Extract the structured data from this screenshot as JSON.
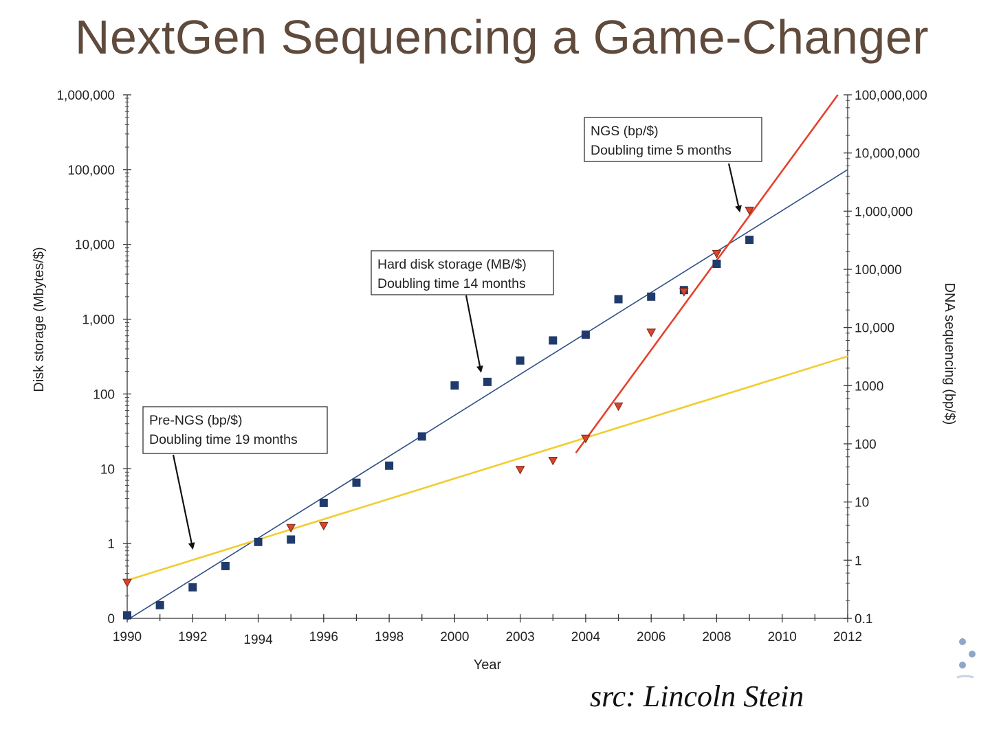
{
  "slide": {
    "title": "NextGen Sequencing a Game-Changer",
    "source": "src: Lincoln Stein"
  },
  "chart_data": {
    "type": "scatter",
    "title": "",
    "xlabel": "Year",
    "ylabel_left": "Disk storage (Mbytes/$)",
    "ylabel_right": "DNA sequencing (bp/$)",
    "x_tick_labels": [
      "1990",
      "1992",
      "1994",
      "1996",
      "1998",
      "2000",
      "2003",
      "2004",
      "2006",
      "2008",
      "2010",
      "2012"
    ],
    "x_tick_positions": [
      0,
      2,
      4,
      6,
      8,
      10,
      12,
      14,
      16,
      18,
      20,
      22
    ],
    "xlim": [
      0,
      22
    ],
    "y_left_ticks": [
      {
        "value": 0.1,
        "label": "0"
      },
      {
        "value": 1,
        "label": "1"
      },
      {
        "value": 10,
        "label": "10"
      },
      {
        "value": 100,
        "label": "100"
      },
      {
        "value": 1000,
        "label": "1,000"
      },
      {
        "value": 10000,
        "label": "10,000"
      },
      {
        "value": 100000,
        "label": "100,000"
      },
      {
        "value": 1000000,
        "label": "1,000,000"
      }
    ],
    "y_right_ticks": [
      {
        "value": 0.1,
        "label": "0.1"
      },
      {
        "value": 1,
        "label": "1"
      },
      {
        "value": 10,
        "label": "10"
      },
      {
        "value": 100,
        "label": "100"
      },
      {
        "value": 1000,
        "label": "1000"
      },
      {
        "value": 10000,
        "label": "10,000"
      },
      {
        "value": 100000,
        "label": "100,000"
      },
      {
        "value": 1000000,
        "label": "1,000,000"
      },
      {
        "value": 10000000,
        "label": "10,000,000"
      },
      {
        "value": 100000000,
        "label": "100,000,000"
      }
    ],
    "ylim_left": [
      0.1,
      1000000
    ],
    "ylim_right": [
      0.1,
      100000000
    ],
    "series": [
      {
        "name": "Hard disk storage (MB/$)",
        "axis": "left",
        "marker": "square",
        "color": "#1f3a6b",
        "points": [
          [
            0,
            0.11
          ],
          [
            1,
            0.15
          ],
          [
            2,
            0.26
          ],
          [
            3,
            0.5
          ],
          [
            4,
            1.05
          ],
          [
            5,
            1.13
          ],
          [
            6,
            3.5
          ],
          [
            7,
            6.5
          ],
          [
            8,
            11
          ],
          [
            9,
            27
          ],
          [
            10,
            130
          ],
          [
            11,
            145
          ],
          [
            12,
            280
          ],
          [
            13,
            520
          ],
          [
            14,
            620
          ],
          [
            15,
            1850
          ],
          [
            16,
            2000
          ],
          [
            17,
            2450
          ],
          [
            18,
            5500
          ],
          [
            19,
            11500
          ]
        ]
      },
      {
        "name": "DNA sequencing (bp/$)",
        "axis": "right",
        "marker": "triangle",
        "color": "#d9442b",
        "points": [
          [
            0,
            0.4
          ],
          [
            5,
            3.5
          ],
          [
            6,
            3.8
          ],
          [
            12,
            35
          ],
          [
            13,
            50
          ],
          [
            14,
            120
          ],
          [
            15,
            430
          ],
          [
            16,
            8000
          ],
          [
            17,
            40000
          ],
          [
            18,
            180000
          ],
          [
            19,
            1000000
          ]
        ]
      }
    ],
    "trend_lines": [
      {
        "name": "Hard disk storage trend",
        "axis": "left",
        "color": "#2e4f86",
        "from": [
          0,
          0.095
        ],
        "to": [
          22,
          100000
        ]
      },
      {
        "name": "Pre-NGS trend",
        "axis": "right",
        "color": "#f2cc2d",
        "from": [
          0,
          0.45
        ],
        "to": [
          22,
          3200
        ]
      },
      {
        "name": "NGS trend",
        "axis": "right",
        "color": "#e5412b",
        "from": [
          13.7,
          70
        ],
        "to": [
          21.7,
          100000000
        ]
      }
    ],
    "annotations": [
      {
        "id": "hdd",
        "lines": [
          "Hard disk storage (MB/$)",
          "Doubling time 14 months"
        ],
        "arrow_to": [
          10.8,
          200
        ],
        "arrow_axis": "left"
      },
      {
        "id": "ngs",
        "lines": [
          "NGS (bp/$)",
          "Doubling time 5 months"
        ],
        "arrow_to": [
          18.7,
          1000000
        ],
        "arrow_axis": "right"
      },
      {
        "id": "prengs",
        "lines": [
          "Pre-NGS (bp/$)",
          "Doubling time 19 months"
        ],
        "arrow_to": [
          2.0,
          1.6
        ],
        "arrow_axis": "right"
      }
    ]
  }
}
